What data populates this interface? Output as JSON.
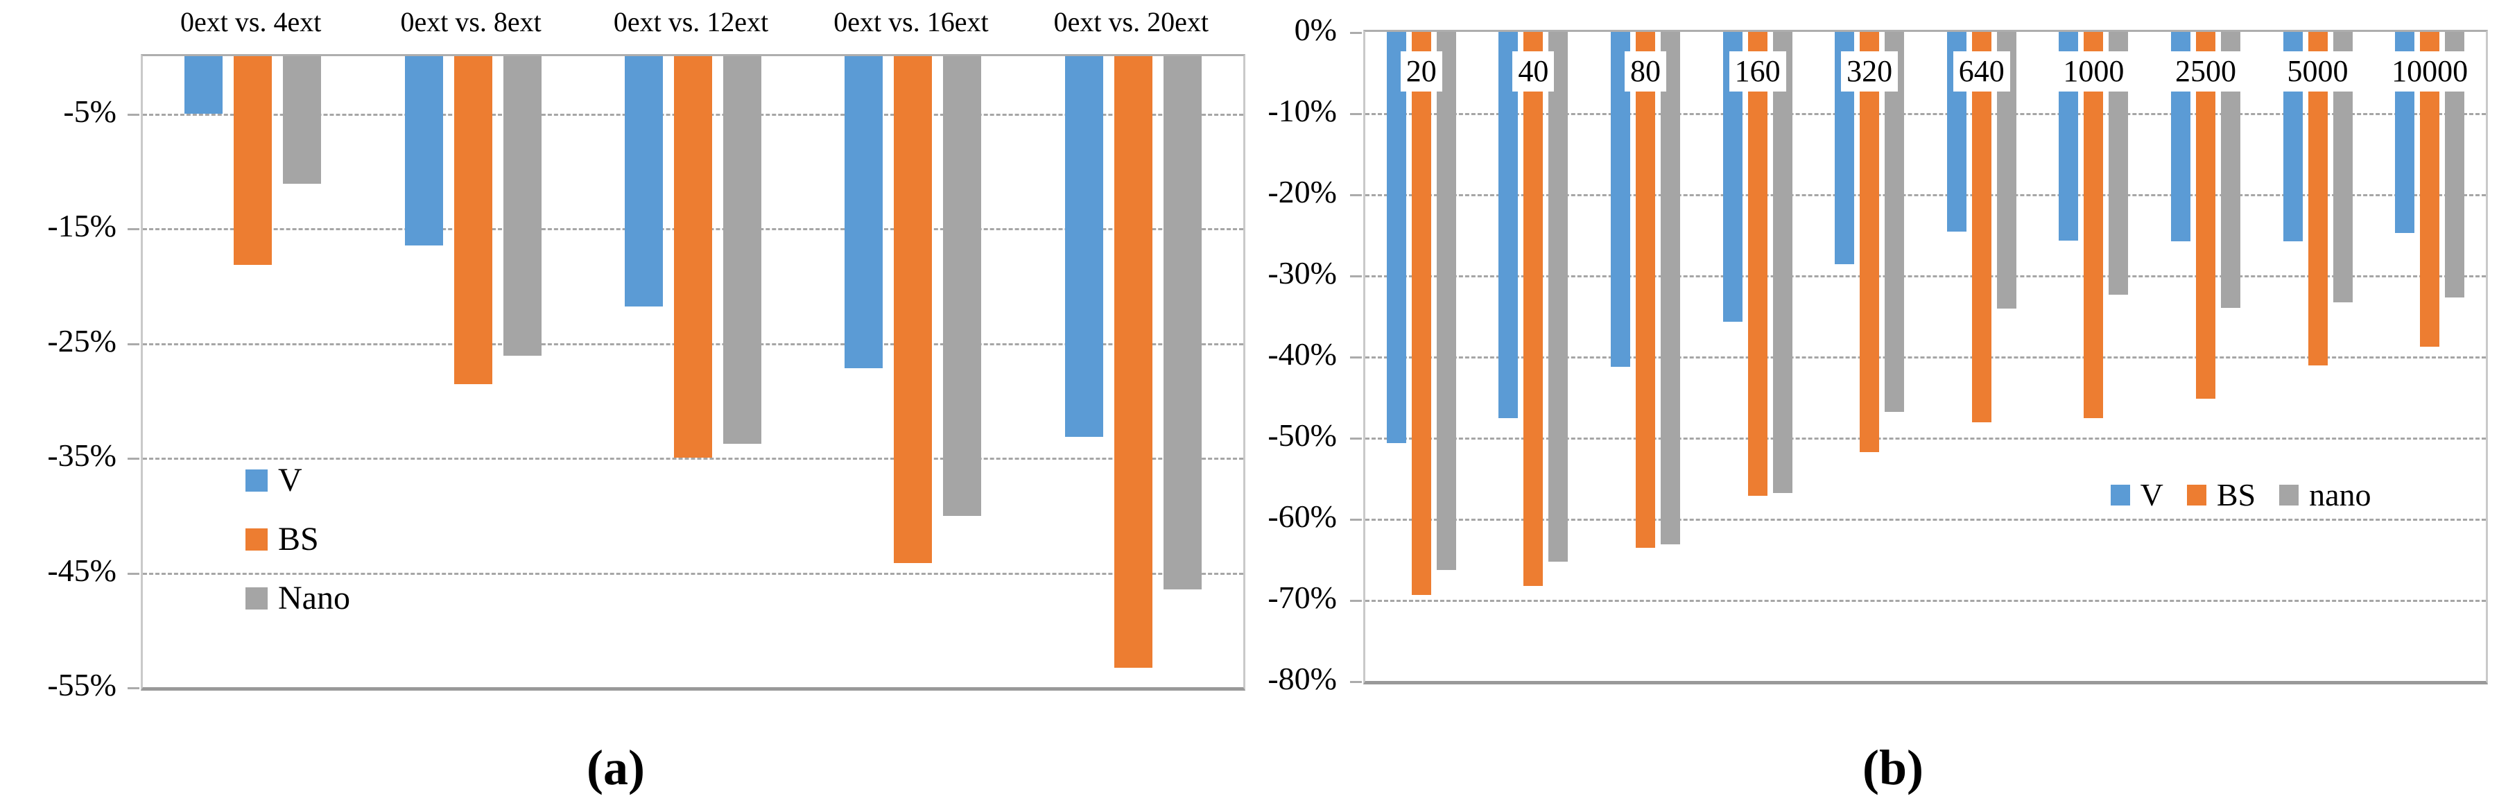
{
  "figure": {
    "background": "#ffffff",
    "panel_a_label": "(a)",
    "panel_b_label": "(b)"
  },
  "colors": {
    "blue_series": "#5B9BD5",
    "orange_series": "#ED7D31",
    "gray_series": "#A5A5A5"
  },
  "chart_data": [
    {
      "id": "a",
      "type": "bar",
      "panel_label": "(a)",
      "categories": [
        "0ext vs. 4ext",
        "0ext vs. 8ext",
        "0ext vs. 12ext",
        "0ext vs. 16ext",
        "0ext vs. 20ext"
      ],
      "category_label_position": "above-plot",
      "series": [
        {
          "name": "V",
          "color": "#5B9BD5",
          "values": [
            -5.0,
            -16.5,
            -21.8,
            -27.2,
            -33.2
          ]
        },
        {
          "name": "BS",
          "color": "#ED7D31",
          "values": [
            -18.2,
            -28.6,
            -35.0,
            -44.2,
            -53.3
          ]
        },
        {
          "name": "Nano",
          "color": "#A5A5A5",
          "values": [
            -11.1,
            -26.1,
            -33.8,
            -40.1,
            -46.5
          ]
        }
      ],
      "unit": "%",
      "ylim": [
        0,
        -55
      ],
      "yticks": [
        {
          "value": -5,
          "label": "-5%"
        },
        {
          "value": -15,
          "label": "-15%"
        },
        {
          "value": -25,
          "label": "-25%"
        },
        {
          "value": -35,
          "label": "-35%"
        },
        {
          "value": -45,
          "label": "-45%"
        },
        {
          "value": -55,
          "label": "-55%"
        }
      ],
      "gridlines": [
        -5,
        -15,
        -25,
        -35,
        -45
      ],
      "grid": "dashed",
      "legend": {
        "orientation": "vertical",
        "position": "inside-left",
        "entries": [
          "V",
          "BS",
          "Nano"
        ]
      }
    },
    {
      "id": "b",
      "type": "bar",
      "panel_label": "(b)",
      "categories": [
        "20",
        "40",
        "80",
        "160",
        "320",
        "640",
        "1000",
        "2500",
        "5000",
        "10000"
      ],
      "category_label_position": "inside-plot-white-box",
      "series": [
        {
          "name": "V",
          "color": "#5B9BD5",
          "values": [
            -50.7,
            -47.6,
            -41.3,
            -35.7,
            -28.6,
            -24.6,
            -25.7,
            -25.8,
            -25.8,
            -24.8
          ]
        },
        {
          "name": "BS",
          "color": "#ED7D31",
          "values": [
            -69.4,
            -68.3,
            -63.6,
            -57.2,
            -51.8,
            -48.1,
            -47.6,
            -45.2,
            -41.1,
            -38.8
          ]
        },
        {
          "name": "nano",
          "color": "#A5A5A5",
          "values": [
            -66.3,
            -65.3,
            -63.2,
            -56.8,
            -46.8,
            -34.1,
            -32.4,
            -34.0,
            -33.3,
            -32.7
          ]
        }
      ],
      "unit": "%",
      "ylim": [
        0,
        -80
      ],
      "yticks": [
        {
          "value": 0,
          "label": "0%"
        },
        {
          "value": -10,
          "label": "-10%"
        },
        {
          "value": -20,
          "label": "-20%"
        },
        {
          "value": -30,
          "label": "-30%"
        },
        {
          "value": -40,
          "label": "-40%"
        },
        {
          "value": -50,
          "label": "-50%"
        },
        {
          "value": -60,
          "label": "-60%"
        },
        {
          "value": -70,
          "label": "-70%"
        },
        {
          "value": -80,
          "label": "-80%"
        }
      ],
      "gridlines": [
        -10,
        -20,
        -30,
        -40,
        -50,
        -60,
        -70
      ],
      "grid": "dashed",
      "legend": {
        "orientation": "horizontal",
        "position": "inside-right",
        "entries": [
          "V",
          "BS",
          "nano"
        ]
      }
    }
  ]
}
